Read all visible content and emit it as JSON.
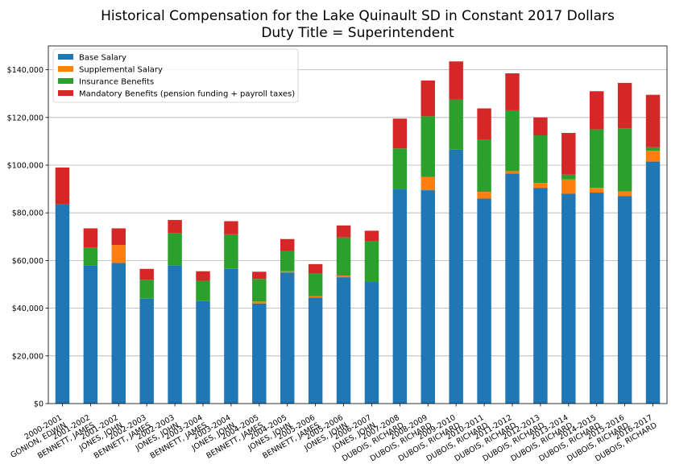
{
  "chart_data": {
    "type": "bar",
    "stacked": true,
    "title": "Historical Compensation for the Lake Quinault SD in Constant 2017 Dollars",
    "subtitle": "Duty Title = Superintendent",
    "xlabel": "",
    "ylabel": "",
    "ylim": [
      0,
      150000
    ],
    "yticks": [
      0,
      20000,
      40000,
      60000,
      80000,
      100000,
      120000,
      140000
    ],
    "ytick_labels": [
      "$0",
      "$20,000",
      "$40,000",
      "$60,000",
      "$80,000",
      "$100,000",
      "$120,000",
      "$140,000"
    ],
    "grid": "horizontal",
    "legend_position": "top-left",
    "categories": [
      [
        "2000-2001",
        "GONION, EDWIN"
      ],
      [
        "2001-2002",
        "BENNETT, JAMES"
      ],
      [
        "2001-2002",
        "JONES, JOHN"
      ],
      [
        "2002-2003",
        "BENNETT, JAMES"
      ],
      [
        "2002-2003",
        "JONES, JOHN"
      ],
      [
        "2003-2004",
        "BENNETT, JAMES"
      ],
      [
        "2003-2004",
        "JONES, JOHN"
      ],
      [
        "2004-2005",
        "BENNETT, JAMES"
      ],
      [
        "2004-2005",
        "JONES, JOHN"
      ],
      [
        "2005-2006",
        "BENNETT, JAMES"
      ],
      [
        "2005-2006",
        "JONES, JOHN"
      ],
      [
        "2006-2007",
        "JONES, JOHN"
      ],
      [
        "2007-2008",
        "DUBOIS, RICHARD"
      ],
      [
        "2008-2009",
        "DUBOIS, RICHARD"
      ],
      [
        "2009-2010",
        "DUBOIS, RICHARD"
      ],
      [
        "2010-2011",
        "DUBOIS, RICHARD"
      ],
      [
        "2011-2012",
        "DUBOIS, RICHARD"
      ],
      [
        "2012-2013",
        "DUBOIS, RICHARD"
      ],
      [
        "2013-2014",
        "DUBOIS, RICHARD"
      ],
      [
        "2014-2015",
        "DUBOIS, RICHARD"
      ],
      [
        "2015-2016",
        "DUBOIS, RICHARD"
      ],
      [
        "2016-2017",
        "DUBOIS, RICHARD"
      ]
    ],
    "series": [
      {
        "name": "Base Salary",
        "color": "#1f77b4",
        "values": [
          83500,
          58000,
          59000,
          44000,
          58000,
          43000,
          56500,
          42000,
          55000,
          44500,
          53000,
          51000,
          90000,
          89500,
          106500,
          86000,
          96500,
          90500,
          88000,
          88500,
          87000,
          101500
        ]
      },
      {
        "name": "Supplemental Salary",
        "color": "#ff7f0e",
        "values": [
          0,
          0,
          7500,
          0,
          0,
          0,
          0,
          800,
          500,
          500,
          700,
          0,
          0,
          5500,
          0,
          2800,
          1000,
          2000,
          6000,
          2000,
          2000,
          4500
        ]
      },
      {
        "name": "Insurance Benefits",
        "color": "#2ca02c",
        "values": [
          0,
          7500,
          0,
          8000,
          13500,
          8500,
          14500,
          9500,
          8500,
          9500,
          16000,
          17000,
          17000,
          25500,
          21000,
          22000,
          25500,
          20000,
          2000,
          24500,
          26500,
          1500
        ]
      },
      {
        "name": "Mandatory Benefits (pension funding + payroll taxes)",
        "color": "#d62728",
        "values": [
          15500,
          8000,
          7000,
          4500,
          5500,
          4000,
          5500,
          3000,
          5000,
          4000,
          5000,
          4500,
          12500,
          15000,
          16000,
          13000,
          15500,
          7500,
          17500,
          16000,
          19000,
          22000
        ]
      }
    ]
  }
}
